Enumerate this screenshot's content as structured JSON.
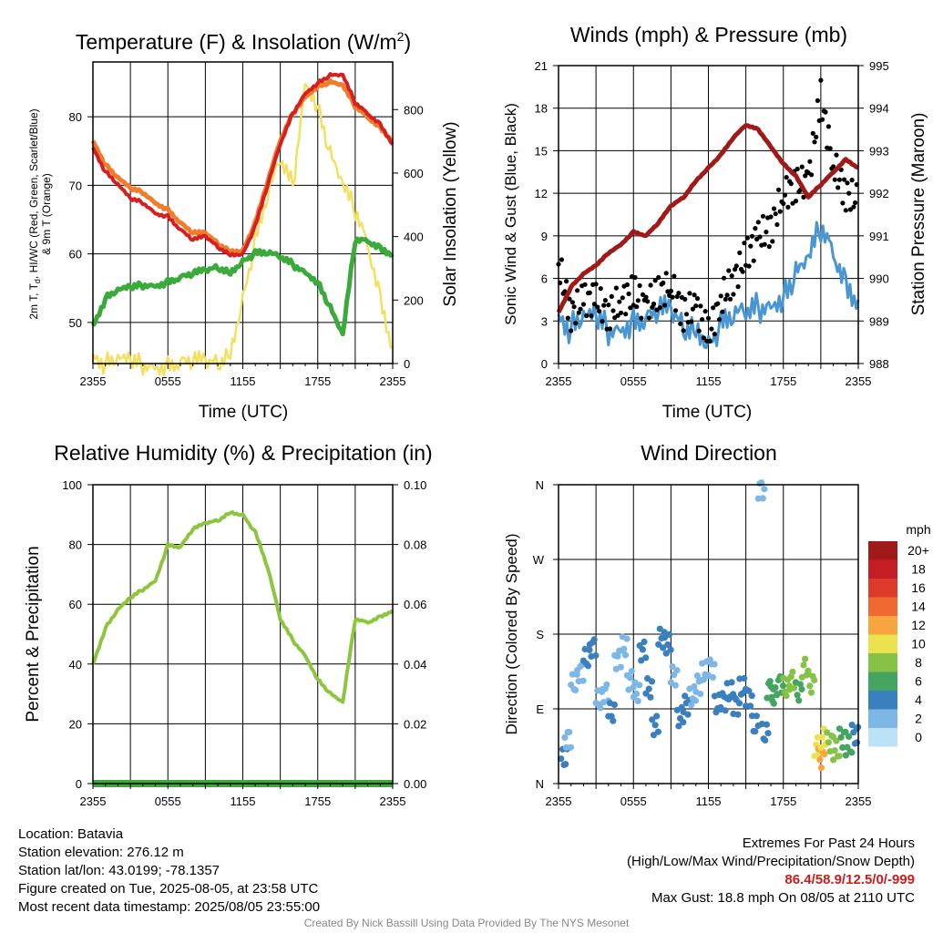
{
  "time_ticks": [
    "2355",
    "0555",
    "1155",
    "1755",
    "2355"
  ],
  "charts": {
    "temperature": {
      "title_main": "Temperature (F) & Insolation (W/m",
      "title_sup": "2",
      "title_end": ")",
      "xlabel": "Time (UTC)",
      "ylabel_left_line1": "2m T, T",
      "ylabel_left_sub": "d",
      "ylabel_left_line1b": ", HI/WC (Red, Green, Scarlet/Blue)",
      "ylabel_left_line2": "& 9m T (Orange)",
      "ylabel_right": "Solar Insolation (Yellow)",
      "y_left_ticks": [
        "50",
        "60",
        "70",
        "80"
      ],
      "y_right_ticks": [
        "0",
        "200",
        "400",
        "600",
        "800"
      ]
    },
    "winds": {
      "title": "Winds (mph) & Pressure (mb)",
      "xlabel": "Time (UTC)",
      "ylabel_left": "Sonic Wind & Gust (Blue, Black)",
      "ylabel_right": "Station Pressure (Maroon)",
      "y_left_ticks": [
        "0",
        "3",
        "6",
        "9",
        "12",
        "15",
        "18",
        "21"
      ],
      "y_right_ticks": [
        "988",
        "989",
        "990",
        "991",
        "992",
        "993",
        "994",
        "995"
      ]
    },
    "humidity": {
      "title": "Relative Humidity (%) & Precipitation (in)",
      "ylabel_left": "Percent & Precipitation",
      "y_left_ticks": [
        "0",
        "20",
        "40",
        "60",
        "80",
        "100"
      ],
      "y_right_ticks": [
        "0.00",
        "0.02",
        "0.04",
        "0.06",
        "0.08",
        "0.10"
      ]
    },
    "direction": {
      "title": "Wind Direction",
      "ylabel_left": "Direction (Colored By Speed)",
      "y_ticks": [
        "N",
        "E",
        "S",
        "W",
        "N"
      ],
      "legend_title": "mph",
      "legend_labels": [
        "20+",
        "18",
        "16",
        "14",
        "12",
        "10",
        "8",
        "6",
        "4",
        "2",
        "0"
      ],
      "legend_colors": [
        "#a01a1a",
        "#c41e24",
        "#de3a2c",
        "#ee6a30",
        "#f8a440",
        "#ece24e",
        "#86c246",
        "#44a460",
        "#3a7fbe",
        "#7cb7e6",
        "#bde2f8"
      ]
    }
  },
  "chart_data": [
    {
      "type": "line",
      "title": "Temperature (F) & Insolation (W/m2)",
      "xlabel": "Time (UTC)",
      "ylabel": "2m T, Td, HI/WC (Red, Green, Scarlet/Blue) & 9m T (Orange)",
      "ylabel_right": "Solar Insolation (Yellow)",
      "x_hours": [
        0,
        1,
        2,
        3,
        4,
        5,
        6,
        7,
        8,
        9,
        10,
        11,
        12,
        13,
        14,
        15,
        16,
        17,
        18,
        19,
        20,
        21,
        22,
        23,
        24
      ],
      "ylim": [
        44,
        88
      ],
      "ylim_right": [
        0,
        950
      ],
      "series": [
        {
          "name": "2m T",
          "color": "#d42020",
          "axis": "left",
          "values": [
            75.5,
            72,
            70,
            68,
            67.5,
            66,
            65.5,
            63.5,
            62,
            62.5,
            61,
            60,
            60,
            64,
            70,
            76,
            80.5,
            83.5,
            85,
            86,
            86,
            82,
            80.5,
            79,
            76
          ]
        },
        {
          "name": "9m T",
          "color": "#f07c2c",
          "axis": "left",
          "values": [
            76.5,
            73,
            71,
            69.5,
            69,
            67.5,
            66.5,
            64.5,
            63,
            63,
            61.5,
            60.5,
            60.5,
            64.5,
            70.5,
            76.5,
            80.5,
            83,
            84.5,
            85,
            84.5,
            81.5,
            80,
            78.5,
            76.5
          ]
        },
        {
          "name": "Td",
          "color": "#3aaa3a",
          "axis": "left",
          "values": [
            49.5,
            53.5,
            54.5,
            55,
            55.5,
            55.5,
            56,
            56.5,
            57,
            57.5,
            58,
            57.5,
            59,
            60,
            60,
            59.5,
            58.5,
            57.5,
            56,
            52,
            48,
            62,
            62,
            61,
            60
          ]
        },
        {
          "name": "Insolation",
          "color": "#f4e060",
          "axis": "right",
          "values": [
            30,
            0,
            0,
            0,
            0,
            0,
            0,
            0,
            0,
            0,
            0,
            50,
            210,
            380,
            520,
            640,
            560,
            900,
            820,
            650,
            550,
            480,
            380,
            220,
            50
          ]
        }
      ]
    },
    {
      "type": "line",
      "title": "Winds (mph) & Pressure (mb)",
      "xlabel": "Time (UTC)",
      "ylabel": "Sonic Wind & Gust (Blue, Black)",
      "ylabel_right": "Station Pressure (Maroon)",
      "x_hours": [
        0,
        1,
        2,
        3,
        4,
        5,
        6,
        7,
        8,
        9,
        10,
        11,
        12,
        13,
        14,
        15,
        16,
        17,
        18,
        19,
        20,
        21,
        22,
        23,
        24
      ],
      "ylim": [
        0,
        21
      ],
      "ylim_right": [
        988,
        995
      ],
      "series": [
        {
          "name": "Sonic Wind",
          "color": "#4a96d2",
          "axis": "left",
          "values": [
            3.5,
            2.5,
            2.8,
            3.0,
            2.5,
            2.8,
            3.2,
            3.0,
            3.5,
            3.5,
            2.5,
            3.0,
            1.5,
            2.5,
            3.0,
            3.5,
            4.0,
            4.5,
            5.0,
            6.0,
            7.0,
            9.5,
            8.0,
            6.0,
            4.5
          ]
        },
        {
          "name": "Gust",
          "color": "#000000",
          "axis": "left",
          "values": [
            7.0,
            3.5,
            4.5,
            4.5,
            3.5,
            4.5,
            5.0,
            4.0,
            5.0,
            5.5,
            3.5,
            4.0,
            2.0,
            4.5,
            6.0,
            7.5,
            9.0,
            9.5,
            12.0,
            12.5,
            13.0,
            18.8,
            14.0,
            12.0,
            11.5
          ]
        },
        {
          "name": "Pressure",
          "color": "#a01a1a",
          "axis": "right",
          "values": [
            989.2,
            989.8,
            990.1,
            990.3,
            990.6,
            990.8,
            991.1,
            991.0,
            991.3,
            991.7,
            991.9,
            992.3,
            992.6,
            992.9,
            993.3,
            993.6,
            993.5,
            993.1,
            992.7,
            992.4,
            991.9,
            992.2,
            992.5,
            992.8,
            992.6
          ]
        }
      ]
    },
    {
      "type": "line",
      "title": "Relative Humidity (%) & Precipitation (in)",
      "ylabel": "Percent & Precipitation",
      "x_hours": [
        0,
        1,
        2,
        3,
        4,
        5,
        6,
        7,
        8,
        9,
        10,
        11,
        12,
        13,
        14,
        15,
        16,
        17,
        18,
        19,
        20,
        21,
        22,
        23,
        24
      ],
      "ylim": [
        0,
        100
      ],
      "ylim_right": [
        0,
        0.1
      ],
      "series": [
        {
          "name": "RH",
          "color": "#8cc63e",
          "axis": "left",
          "values": [
            40,
            52,
            58,
            62,
            65,
            68,
            80,
            79,
            85,
            87,
            88,
            91,
            90,
            84,
            72,
            55,
            48,
            43,
            35,
            30,
            27,
            55,
            54,
            56,
            58
          ]
        },
        {
          "name": "Precipitation",
          "color": "#3aa83a",
          "axis": "right",
          "values": [
            0,
            0,
            0,
            0,
            0,
            0,
            0,
            0,
            0,
            0,
            0,
            0,
            0,
            0,
            0,
            0,
            0,
            0,
            0,
            0,
            0,
            0,
            0,
            0,
            0
          ]
        }
      ]
    },
    {
      "type": "scatter",
      "title": "Wind Direction",
      "ylabel": "Direction (Colored By Speed)",
      "y_categories": [
        "N",
        "E",
        "S",
        "W",
        "N"
      ],
      "ylim_deg": [
        0,
        360
      ],
      "colorbar_label": "mph",
      "points": [
        {
          "hour": 0.2,
          "deg": 30,
          "mph": 3
        },
        {
          "hour": 0.5,
          "deg": 55,
          "mph": 2
        },
        {
          "hour": 1.0,
          "deg": 120,
          "mph": 2
        },
        {
          "hour": 1.5,
          "deg": 135,
          "mph": 2
        },
        {
          "hour": 2.0,
          "deg": 150,
          "mph": 3
        },
        {
          "hour": 2.5,
          "deg": 165,
          "mph": 3
        },
        {
          "hour": 3.0,
          "deg": 100,
          "mph": 2
        },
        {
          "hour": 3.5,
          "deg": 110,
          "mph": 2
        },
        {
          "hour": 4.0,
          "deg": 85,
          "mph": 3
        },
        {
          "hour": 4.5,
          "deg": 150,
          "mph": 2
        },
        {
          "hour": 5.0,
          "deg": 165,
          "mph": 2
        },
        {
          "hour": 5.5,
          "deg": 125,
          "mph": 2
        },
        {
          "hour": 6.0,
          "deg": 110,
          "mph": 2
        },
        {
          "hour": 6.5,
          "deg": 160,
          "mph": 3
        },
        {
          "hour": 7.0,
          "deg": 115,
          "mph": 3
        },
        {
          "hour": 7.5,
          "deg": 70,
          "mph": 3
        },
        {
          "hour": 8.0,
          "deg": 175,
          "mph": 3
        },
        {
          "hour": 8.5,
          "deg": 168,
          "mph": 3
        },
        {
          "hour": 9.0,
          "deg": 130,
          "mph": 2
        },
        {
          "hour": 9.5,
          "deg": 80,
          "mph": 3
        },
        {
          "hour": 10.0,
          "deg": 95,
          "mph": 3
        },
        {
          "hour": 10.5,
          "deg": 105,
          "mph": 2
        },
        {
          "hour": 11.0,
          "deg": 120,
          "mph": 2
        },
        {
          "hour": 11.5,
          "deg": 135,
          "mph": 2
        },
        {
          "hour": 12.0,
          "deg": 140,
          "mph": 2
        },
        {
          "hour": 12.5,
          "deg": 95,
          "mph": 3
        },
        {
          "hour": 13.0,
          "deg": 100,
          "mph": 3
        },
        {
          "hour": 13.5,
          "deg": 110,
          "mph": 3
        },
        {
          "hour": 14.0,
          "deg": 95,
          "mph": 3
        },
        {
          "hour": 14.5,
          "deg": 115,
          "mph": 4
        },
        {
          "hour": 15.0,
          "deg": 105,
          "mph": 4
        },
        {
          "hour": 15.5,
          "deg": 70,
          "mph": 4
        },
        {
          "hour": 16.0,
          "deg": 355,
          "mph": 2
        },
        {
          "hour": 16.3,
          "deg": 60,
          "mph": 4
        },
        {
          "hour": 16.7,
          "deg": 115,
          "mph": 5
        },
        {
          "hour": 17.0,
          "deg": 105,
          "mph": 6
        },
        {
          "hour": 17.5,
          "deg": 120,
          "mph": 6
        },
        {
          "hour": 18.0,
          "deg": 115,
          "mph": 7
        },
        {
          "hour": 18.5,
          "deg": 125,
          "mph": 7
        },
        {
          "hour": 19.0,
          "deg": 110,
          "mph": 6
        },
        {
          "hour": 19.5,
          "deg": 140,
          "mph": 8
        },
        {
          "hour": 20.0,
          "deg": 120,
          "mph": 7
        },
        {
          "hour": 20.5,
          "deg": 45,
          "mph": 10
        },
        {
          "hour": 20.8,
          "deg": 30,
          "mph": 12
        },
        {
          "hour": 21.0,
          "deg": 55,
          "mph": 9
        },
        {
          "hour": 21.5,
          "deg": 50,
          "mph": 8
        },
        {
          "hour": 22.0,
          "deg": 40,
          "mph": 7
        },
        {
          "hour": 22.5,
          "deg": 55,
          "mph": 6
        },
        {
          "hour": 23.0,
          "deg": 45,
          "mph": 5
        },
        {
          "hour": 23.5,
          "deg": 60,
          "mph": 4
        },
        {
          "hour": 23.9,
          "deg": 60,
          "mph": 4
        }
      ]
    }
  ],
  "info": {
    "location": "Location: Batavia",
    "elevation": "Station elevation: 276.12 m",
    "latlon": "Station lat/lon: 43.0199; -78.1357",
    "created": "Figure created on Tue, 2025-08-05, at 23:58 UTC",
    "recent": "Most recent data timestamp: 2025/08/05 23:55:00"
  },
  "extremes": {
    "title": "Extremes For Past 24 Hours",
    "legend": "(High/Low/Max Wind/Precipitation/Snow Depth)",
    "values": "86.4/58.9/12.5/0/-999",
    "max_gust": "Max Gust: 18.8 mph On 08/05 at 2110 UTC"
  },
  "credit": "Created By Nick Bassill Using Data Provided By The NYS Mesonet"
}
